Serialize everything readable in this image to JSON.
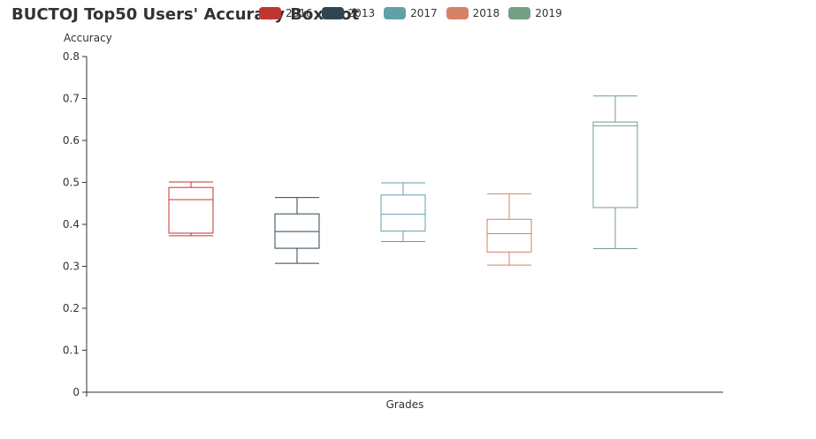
{
  "chart_data": {
    "type": "boxplot",
    "title": "BUCTOJ Top50 Users' Accuracy BoxPlot",
    "xlabel": "Grades",
    "ylabel": "Accuracy",
    "ylim": [
      0,
      0.8
    ],
    "yticks": [
      "0",
      "0.1",
      "0.2",
      "0.3",
      "0.4",
      "0.5",
      "0.6",
      "0.7",
      "0.8"
    ],
    "legend_position": "top",
    "series": [
      {
        "name": "2016",
        "color": "#c23531",
        "min": 0.373,
        "q1": 0.379,
        "median": 0.459,
        "q3": 0.488,
        "max": 0.501
      },
      {
        "name": "2013",
        "color": "#2f4554",
        "min": 0.307,
        "q1": 0.343,
        "median": 0.383,
        "q3": 0.425,
        "max": 0.464
      },
      {
        "name": "2017",
        "color": "#61a0a8",
        "min": 0.359,
        "q1": 0.384,
        "median": 0.424,
        "q3": 0.47,
        "max": 0.499
      },
      {
        "name": "2018",
        "color": "#d48265",
        "min": 0.303,
        "q1": 0.334,
        "median": 0.378,
        "q3": 0.412,
        "max": 0.473
      },
      {
        "name": "2019",
        "color": "#749f83",
        "min": 0.342,
        "q1": 0.44,
        "median": 0.635,
        "q3": 0.644,
        "max": 0.706
      }
    ]
  }
}
